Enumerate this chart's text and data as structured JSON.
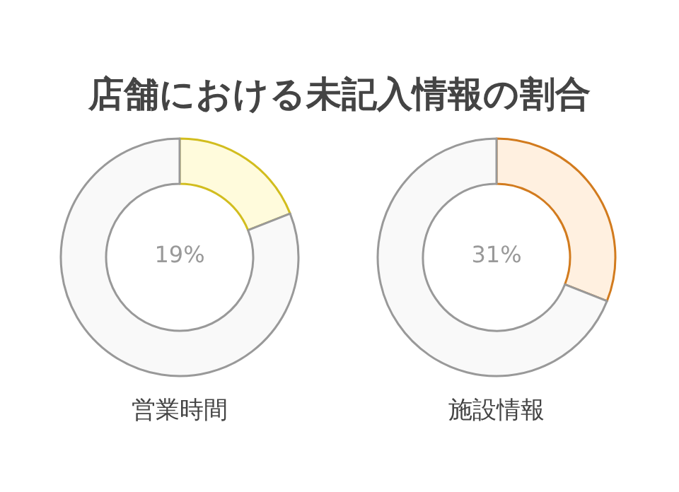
{
  "chart_data": [
    {
      "type": "donut",
      "title": "店舗における未記入情報の割合",
      "xlabel": "営業時間",
      "categories": [
        null,
        null
      ],
      "values": [
        19,
        81
      ],
      "colors": [
        "#fffbdc",
        "#f9f9f9"
      ],
      "annotations": [
        "19%"
      ]
    },
    {
      "type": "donut",
      "xlabel": "施設情報",
      "categories": [
        null,
        null
      ],
      "values": [
        31,
        69
      ],
      "colors": [
        "#fff0e0",
        "#f9f9f9"
      ],
      "annotations": [
        "31%"
      ]
    }
  ]
}
